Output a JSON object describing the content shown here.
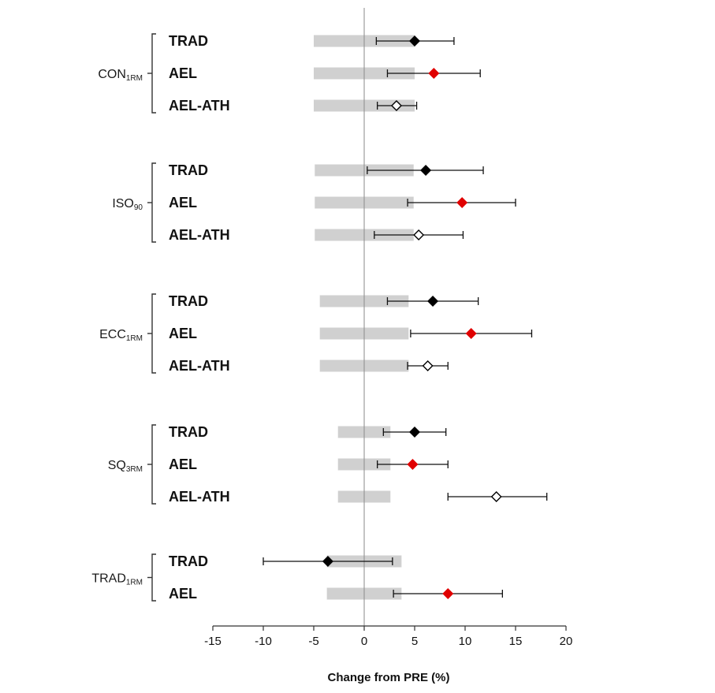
{
  "chart_data": {
    "type": "forest",
    "xlabel": "Change from PRE (%)",
    "xlim": [
      -15,
      20
    ],
    "xticks": [
      -15,
      -10,
      -5,
      0,
      5,
      10,
      15,
      20
    ],
    "reference_line": 0,
    "marker_legend": {
      "TRAD": {
        "fill": "#000000",
        "stroke": "#000000"
      },
      "AEL": {
        "fill": "#e00000",
        "stroke": "#e00000"
      },
      "AEL-ATH": {
        "fill": "#ffffff",
        "stroke": "#000000"
      }
    },
    "band_color": "#d0d0d0",
    "groups": [
      {
        "label": "CON",
        "sub": "1RM",
        "band": [
          -5,
          5
        ],
        "rows": [
          {
            "label": "TRAD",
            "mean": 5.0,
            "lo": 1.2,
            "hi": 8.9
          },
          {
            "label": "AEL",
            "mean": 6.9,
            "lo": 2.3,
            "hi": 11.5
          },
          {
            "label": "AEL-ATH",
            "mean": 3.2,
            "lo": 1.3,
            "hi": 5.2
          }
        ]
      },
      {
        "label": "ISO",
        "sub": "90",
        "band": [
          -4.9,
          4.9
        ],
        "rows": [
          {
            "label": "TRAD",
            "mean": 6.1,
            "lo": 0.3,
            "hi": 11.8
          },
          {
            "label": "AEL",
            "mean": 9.7,
            "lo": 4.3,
            "hi": 15.0
          },
          {
            "label": "AEL-ATH",
            "mean": 5.4,
            "lo": 1.0,
            "hi": 9.8
          }
        ]
      },
      {
        "label": "ECC",
        "sub": "1RM",
        "band": [
          -4.4,
          4.4
        ],
        "rows": [
          {
            "label": "TRAD",
            "mean": 6.8,
            "lo": 2.3,
            "hi": 11.3
          },
          {
            "label": "AEL",
            "mean": 10.6,
            "lo": 4.6,
            "hi": 16.6
          },
          {
            "label": "AEL-ATH",
            "mean": 6.3,
            "lo": 4.3,
            "hi": 8.3
          }
        ]
      },
      {
        "label": "SQ",
        "sub": "3RM",
        "band": [
          -2.6,
          2.6
        ],
        "rows": [
          {
            "label": "TRAD",
            "mean": 5.0,
            "lo": 1.9,
            "hi": 8.1
          },
          {
            "label": "AEL",
            "mean": 4.8,
            "lo": 1.3,
            "hi": 8.3
          },
          {
            "label": "AEL-ATH",
            "mean": 13.1,
            "lo": 8.3,
            "hi": 18.1
          }
        ]
      },
      {
        "label": "TRAD",
        "sub": "1RM",
        "band": [
          -3.7,
          3.7
        ],
        "rows": [
          {
            "label": "TRAD",
            "mean": -3.6,
            "lo": -10.0,
            "hi": 2.8
          },
          {
            "label": "AEL",
            "mean": 8.3,
            "lo": 2.9,
            "hi": 13.7
          }
        ]
      }
    ]
  }
}
